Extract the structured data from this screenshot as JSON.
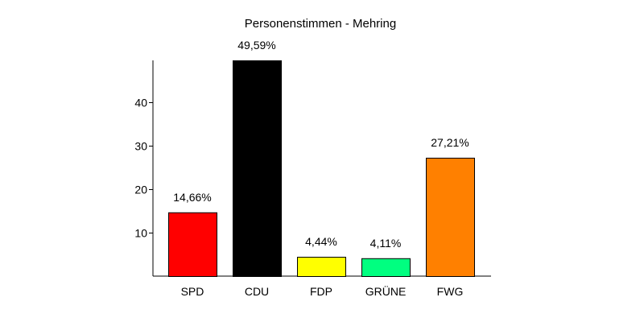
{
  "chart_data": {
    "type": "bar",
    "title": "Personenstimmen - Mehring",
    "xlabel": "",
    "ylabel": "",
    "categories": [
      "SPD",
      "CDU",
      "FDP",
      "GRÜNE",
      "FWG"
    ],
    "values": [
      14.66,
      49.59,
      4.44,
      4.11,
      27.21
    ],
    "value_labels": [
      "14,66%",
      "49,59%",
      "4,44%",
      "4,11%",
      "27,21%"
    ],
    "colors": [
      "#ff0000",
      "#000000",
      "#ffff00",
      "#00ff80",
      "#ff8000"
    ],
    "ylim": [
      0,
      49.59
    ],
    "yticks": [
      10,
      20,
      30,
      40
    ],
    "ytick_labels": [
      "10",
      "20",
      "30",
      "40"
    ],
    "grid": false,
    "legend": "none"
  }
}
